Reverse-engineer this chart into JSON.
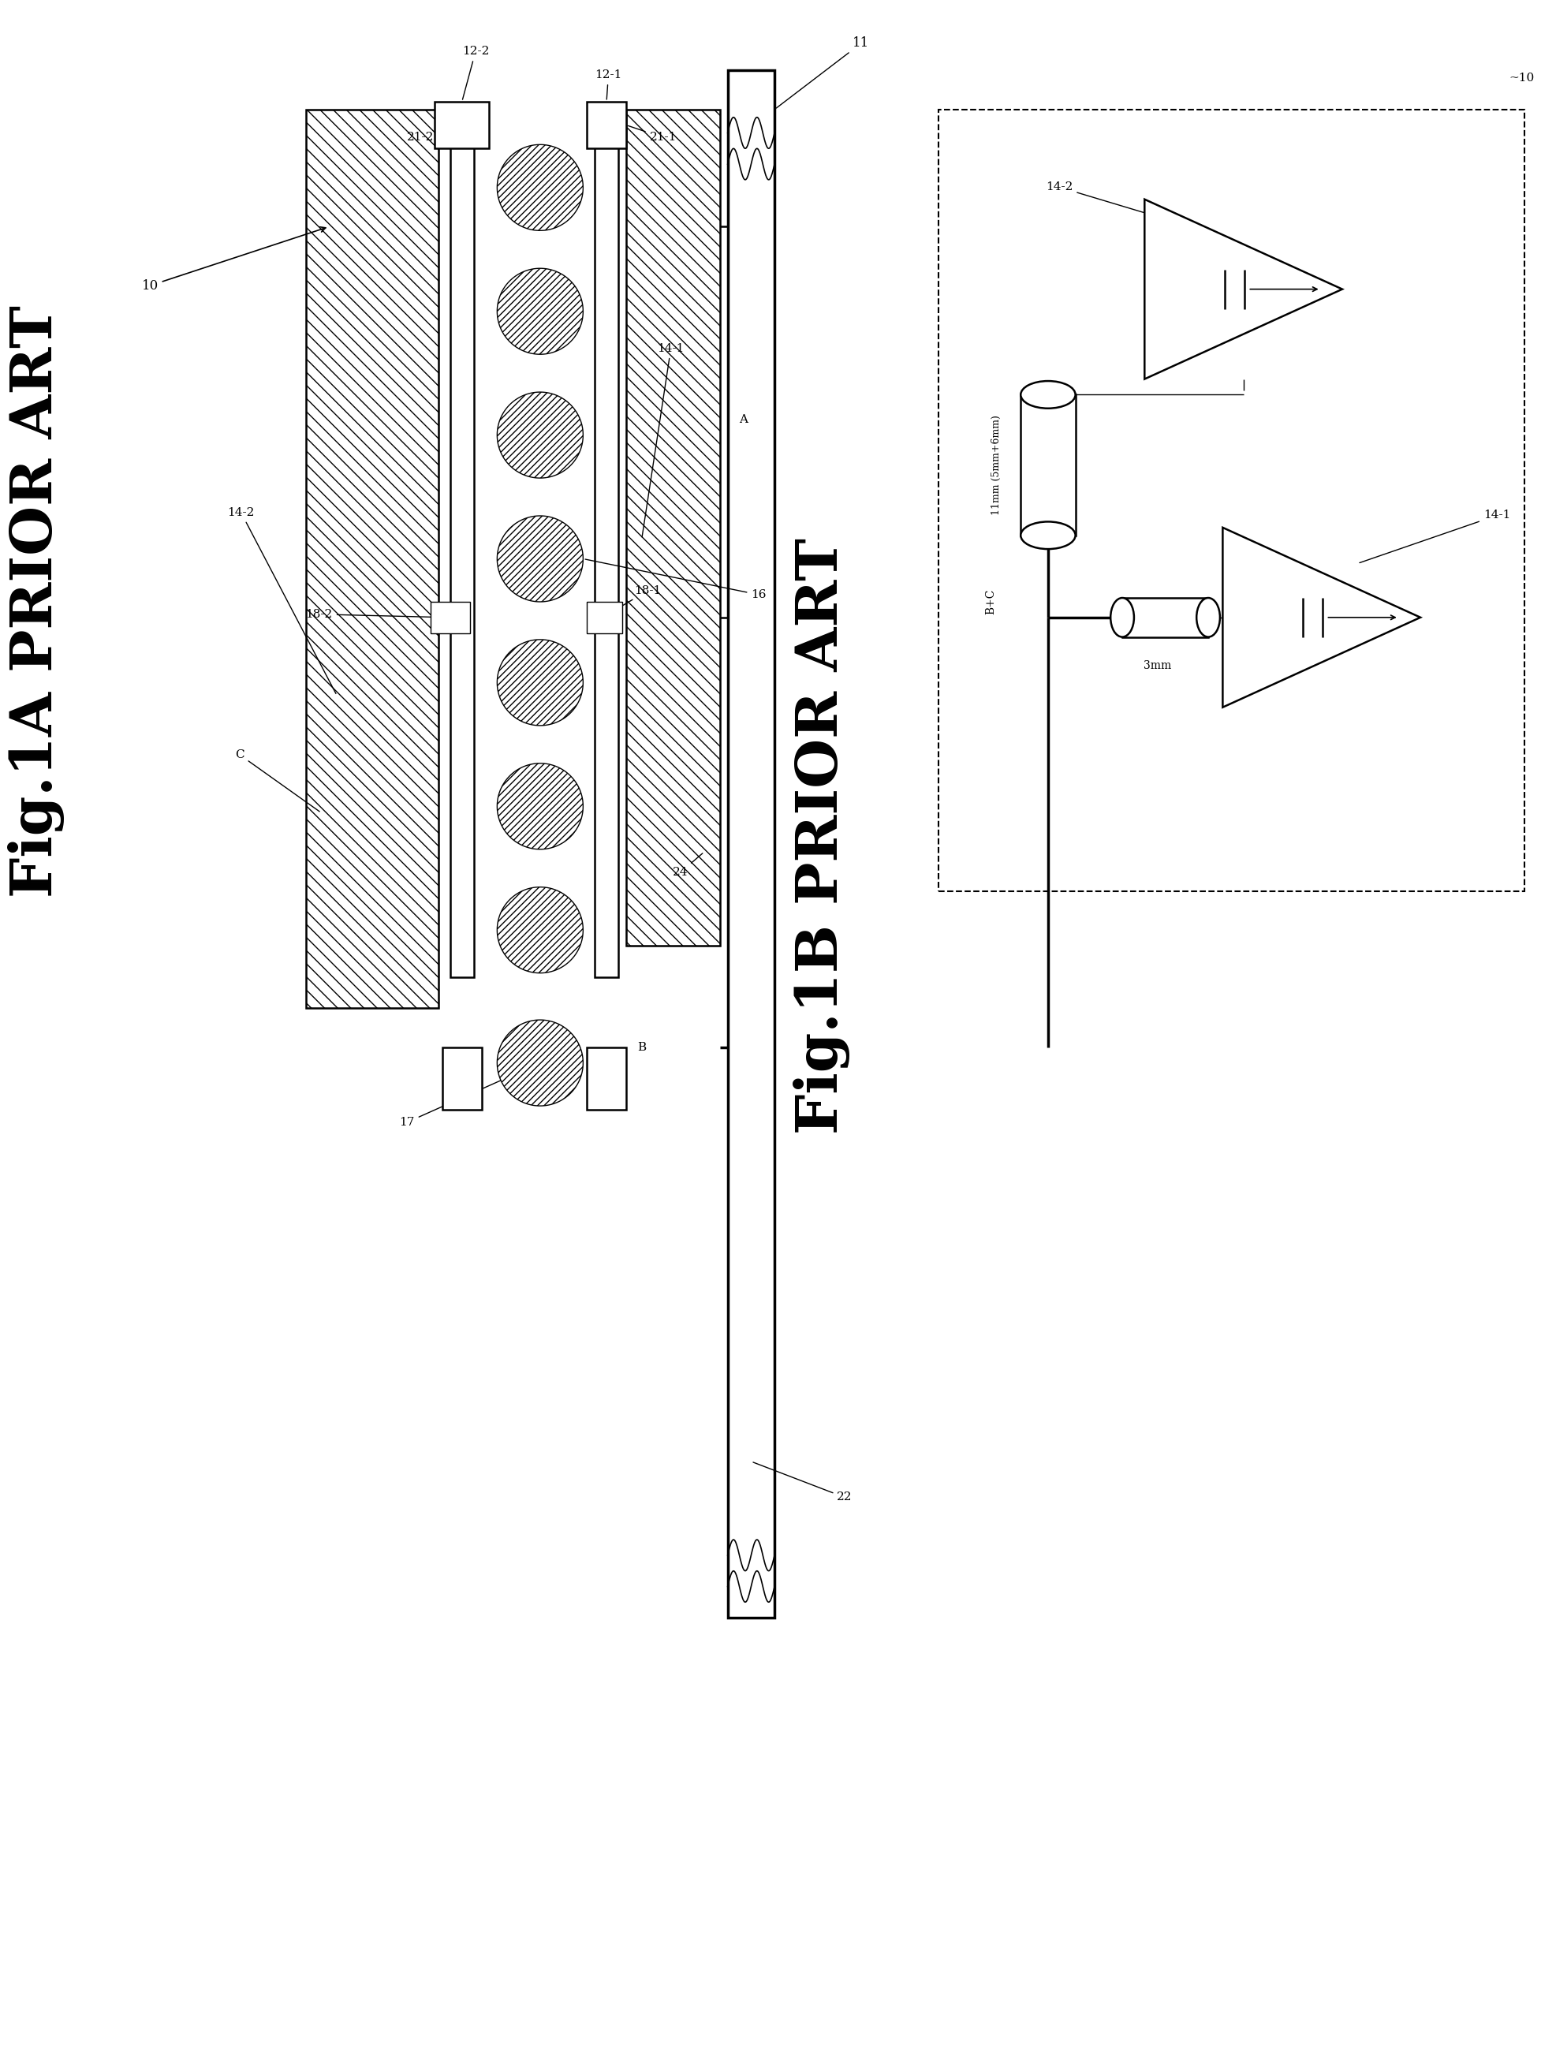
{
  "bg_color": "#ffffff",
  "fig_width": 19.73,
  "fig_height": 26.08,
  "title1a": "Fig.1A PRIOR ART",
  "title1b": "Fig.1B PRIOR ART",
  "label_10": "10",
  "label_11": "11",
  "label_12_1": "12-1",
  "label_12_2": "12-2",
  "label_14_1": "14-1",
  "label_14_2": "14-2",
  "label_16": "16",
  "label_17": "17",
  "label_18_1": "18-1",
  "label_18_2": "18-2",
  "label_21_1": "21-1",
  "label_21_2": "21-2",
  "label_22": "22",
  "label_24": "24",
  "label_A": "A",
  "label_B": "B",
  "label_BC": "B+C",
  "label_C": "C",
  "label_10b": "~10",
  "label_11mm": "11mm (5mm+6mm)",
  "label_3mm": "3mm"
}
